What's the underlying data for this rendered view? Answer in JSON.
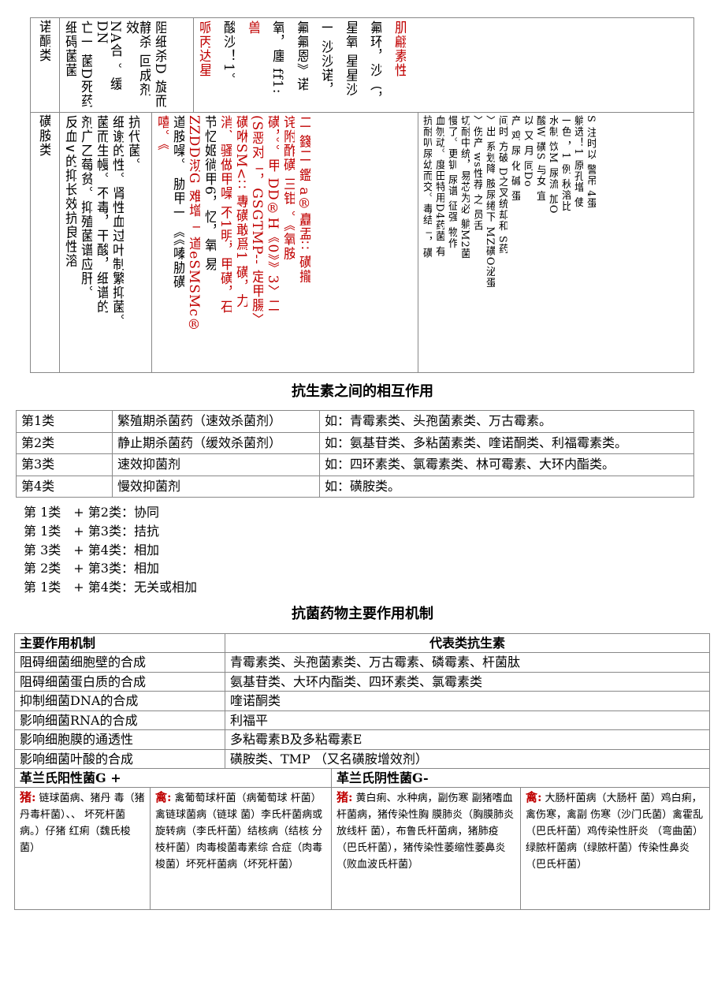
{
  "top_table": {
    "rows": [
      {
        "label": "诺酮类",
        "cells": [
          {
            "columns": [
              {
                "text": "细碍菌菌"
              },
              {
                "text": "亡一 菌D死药"
              },
              {
                "text": "NA合 。缓 DN"
              },
              {
                "text": "静杀 回成剂效"
              },
              {
                "text": "阻细杀D 旋而"
              }
            ]
          },
          {
            "columns": [
              {
                "text": "哌丙达星",
                "color": "#c00000"
              },
              {
                "text": "酸沙！1。"
              },
              {
                "text": "兽",
                "color": "#c00000"
              },
              {
                "text": "氧，廛 ff1:"
              },
              {
                "text": "氟氟恩》诺"
              },
              {
                "text": "一 沙沙诺，"
              },
              {
                "text": "星氧 星星沙"
              },
              {
                "text": "氟环，沙（，"
              },
              {
                "text": "肌翩素性",
                "color": "#c00000"
              }
            ]
          }
        ]
      },
      {
        "label": "磺胺类",
        "cells": [
          {
            "columns": [
              {
                "text": "反血∨的抑长效抗良性溶"
              },
              {
                "text": "剂广乙莓贫。抑殖菌谱应肝。"
              },
              {
                "text": "菌而生幔。不毒，干酸，细谱的"
              },
              {
                "text": "细谢的性。肾性血过叶制繁抑菌。"
              },
              {
                "text": "抗代菌。"
              }
            ]
          },
          {
            "columns": [
              {
                "text": "嘻。《",
                "color": "#c00000"
              },
              {
                "text": "道胺噪。 胁甲一 《《嗪胁磺"
              },
              {
                "text": "ZZDD沏G 难增「 道eSMSMc®",
                "color": "#c00000"
              },
              {
                "text": "节忆姬徜甲6，忆，氧 易"
              },
              {
                "text": "消、骚做甲噪 不1明，甲磺，石",
                "color": "#c00000"
              },
              {
                "text": "磺咻SM<∷ 專磺敢爲1 磺，力",
                "color": "#c00000"
              },
              {
                "text": "(S恶对「，GSGTMP-- 定甲腸〉",
                "color": "#c00000"
              },
              {
                "text": "磺，。。甲 DD®H《0》》3〉二",
                "color": "#c00000"
              },
              {
                "text": "诧附酢磺 三钳 。《氧胺",
                "color": "#c00000"
              },
              {
                "text": "二 籛二 鑑 a®矗盂∷ 磺攏",
                "color": "#c00000"
              }
            ]
          },
          {
            "columns": [
              {
                "text": "抗耐叭尿幼而交。毒结「，磺"
              },
              {
                "text": "血刎动。度田特用D4药菌 有"
              },
              {
                "text": "慢了。更钏 尿谱 征强 物作"
              },
              {
                "text": "切耐中统，易芯为必 躺M2菌"
              },
              {
                "text": "〉伤产 ws性荐 之 员舌"
              },
              {
                "text": "〉出 系划降 胺尿绻下 MZ磺O泌蛋"
              },
              {
                "text": "间时 方破 D之叉统却和 S药"
              },
              {
                "text": "产 鸡 尿 化 碱 蛋"
              },
              {
                "text": "以 又 月 同Do"
              },
              {
                "text": "酸W 磺S 与女 宜"
              },
              {
                "text": "水制 饮M 尿流 加O"
              },
              {
                "text": "一色 ，1 例 秋溶比"
              },
              {
                "text": "躺选！1 原孔增 使"
              },
              {
                "text": "S 注时以 警吊 4蛋"
              }
            ]
          }
        ]
      }
    ]
  },
  "section1": {
    "title": "抗生素之间的相互作用",
    "rows": [
      [
        "第1类",
        "繁殖期杀菌药（速效杀菌剂）",
        "如：青霉素类、头孢菌素类、万古霉素。"
      ],
      [
        "第2类",
        "静止期杀菌药（缓效杀菌剂）",
        "如：氨基苷类、多粘菌素类、喹诺酮类、利福霉素类。"
      ],
      [
        "第3类",
        "速效抑菌剂",
        "如：四环素类、氯霉素类、林可霉素、大环内酯类。"
      ],
      [
        "第4类",
        "慢效抑菌剂",
        "如：磺胺类。"
      ]
    ],
    "combos": [
      "第 1类　+ 第2类：协同",
      "第 1类　+ 第3类：拮抗",
      "第 3类　+ 第4类：相加",
      "第 2类　+ 第3类：相加",
      "第 1类　+ 第4类：无关或相加"
    ]
  },
  "section2": {
    "title": "抗菌药物主要作用机制",
    "header": [
      "主要作用机制",
      "代表类抗生素"
    ],
    "rows": [
      [
        "阻碍细菌细胞壁的合成",
        "青霉素类、头孢菌素类、万古霉素、磷霉素、杆菌肽"
      ],
      [
        "阻碍细菌蛋白质的合成",
        "氨基苷类、大环内酯类、四环素类、氯霉素类"
      ],
      [
        "抑制细菌DNA的合成",
        "喹诺酮类"
      ],
      [
        "影响细菌RNA的合成",
        "利福平"
      ],
      [
        "影响细胞膜的通透性",
        "多粘霉素B及多粘霉素E"
      ],
      [
        "影响细菌叶酸的合成",
        "磺胺类、TMP （又名磺胺增效剂）"
      ]
    ]
  },
  "section3": {
    "headers": [
      "革兰氏阳性菌G +",
      "革兰氏阴性菌G-"
    ],
    "cells": [
      {
        "tag": "猪:",
        "text": "链球菌病、猪丹 毒（猪丹毒杆菌）、、 坏死杆菌病。）仔猪 红痢（魏氏梭菌）"
      },
      {
        "tag": "禽:",
        "text": "禽葡萄球杆菌（病葡萄球 杆菌）禽链球菌病（链球 菌）李氏杆菌病或旋转病（李氏杆菌）结核病（结核 分枝杆菌）肉毒梭菌毒素综 合症（肉毒梭菌）坏死杆菌病（坏死杆菌）"
      },
      {
        "tag": "猪:",
        "text": "黄白痢、水种病，副伤寒 副猪嗜血杆菌病，猪传染性胸 膜肺炎（胸膜肺炎放线杆 菌），布鲁氏杆菌病，猪肺疫 （巴氏杆菌），猪传染性萎缩性萎鼻炎（败血波氏杆菌）"
      },
      {
        "tag": "禽:",
        "text": "大肠杆菌病（大肠杆 菌）鸡白痢，禽伤寒，禽副 伤寒（沙门氏菌）禽霍乱（巴氏杆菌）鸡传染性肝炎 （弯曲菌）绿脓杆菌病（绿脓杆菌）传染性鼻炎 （巴氏杆菌）"
      }
    ]
  }
}
